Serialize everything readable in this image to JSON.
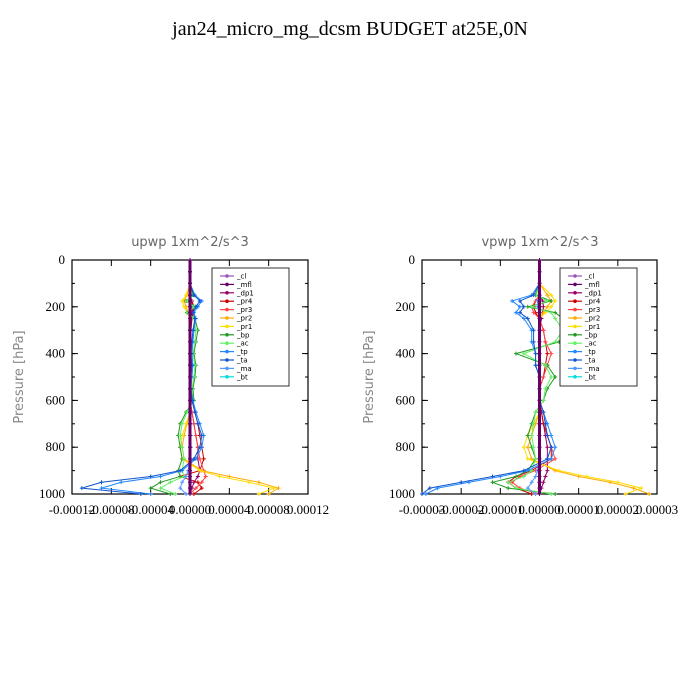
{
  "figure": {
    "title": "jan24_micro_mg_dcsm  BUDGET at25E,0N"
  },
  "chart_data": [
    {
      "type": "line",
      "title": "upwp   1xm^2/s^3",
      "ylabel": "Pressure [hPa]",
      "xlabel": "",
      "xlim": [
        -0.00012,
        0.00012
      ],
      "ylim": [
        1000,
        0
      ],
      "x_tick_labels": [
        "-0.00012",
        "-0.00008",
        "-0.00004",
        "0.00000",
        "0.00004",
        "0.00008",
        "0.00012"
      ],
      "y_tick_labels": [
        "0",
        "200",
        "400",
        "600",
        "800",
        "1000"
      ],
      "legend_position": "top-right",
      "levels": [
        0,
        50,
        100,
        150,
        175,
        200,
        225,
        250,
        300,
        350,
        400,
        450,
        500,
        550,
        600,
        650,
        700,
        750,
        800,
        850,
        900,
        925,
        950,
        975,
        1000
      ],
      "series": [
        {
          "name": "_cl",
          "color": "#9955bb",
          "values": [
            0,
            0,
            0,
            0,
            0,
            0,
            0,
            0,
            0,
            0,
            0,
            0,
            0,
            0,
            0,
            0,
            0,
            0,
            0,
            0,
            0,
            0,
            0,
            0,
            0
          ]
        },
        {
          "name": "_mfl",
          "color": "#660066",
          "values": [
            0,
            0,
            0,
            0,
            0,
            0,
            0,
            0,
            0,
            0,
            0,
            0,
            0,
            0,
            0,
            0,
            0,
            0,
            0,
            0,
            0,
            0,
            0,
            0,
            0
          ]
        },
        {
          "name": "_dp1",
          "color": "#990066",
          "values": [
            0,
            0,
            0,
            0,
            2e-06,
            3e-06,
            2e-06,
            1e-06,
            0,
            0,
            0,
            0,
            0,
            0,
            0,
            2e-06,
            4e-06,
            6e-06,
            8e-06,
            8e-06,
            1e-05,
            8e-06,
            4e-06,
            2e-06,
            0
          ]
        },
        {
          "name": "_pr4",
          "color": "#cc0000",
          "values": [
            0,
            0,
            0,
            0,
            2e-06,
            4e-06,
            3e-06,
            2e-06,
            1e-06,
            1e-06,
            1e-06,
            1e-06,
            1e-06,
            0,
            2e-06,
            5e-06,
            8e-06,
            1e-05,
            1.2e-05,
            1.4e-05,
            1e-05,
            -1e-05,
            8e-06,
            1.2e-05,
            4e-06
          ]
        },
        {
          "name": "_pr3",
          "color": "#ff4444",
          "values": [
            0,
            0,
            0,
            0,
            1e-06,
            2e-06,
            1e-06,
            1e-06,
            0,
            0,
            0,
            0,
            0,
            0,
            0,
            2e-06,
            4e-06,
            6e-06,
            8e-06,
            1e-05,
            1.4e-05,
            1.6e-05,
            1.2e-05,
            6e-06,
            0
          ]
        },
        {
          "name": "_pr2",
          "color": "#ffaa00",
          "values": [
            0,
            0,
            0,
            -3e-06,
            -6e-06,
            -4e-06,
            -2e-06,
            0,
            0,
            0,
            0,
            0,
            0,
            0,
            0,
            0,
            -3e-06,
            -6e-06,
            -8e-06,
            -6e-06,
            1.2e-05,
            4e-05,
            7e-05,
            9e-05,
            8e-05
          ]
        },
        {
          "name": "_pr1",
          "color": "#ffdd00",
          "values": [
            0,
            0,
            0,
            -4e-06,
            -8e-06,
            -6e-06,
            -3e-06,
            0,
            0,
            0,
            0,
            0,
            0,
            0,
            0,
            0,
            -4e-06,
            -8e-06,
            -1e-05,
            -8e-06,
            1e-05,
            3e-05,
            6e-05,
            8.5e-05,
            7e-05
          ]
        },
        {
          "name": "_bp",
          "color": "#229922",
          "values": [
            0,
            0,
            0,
            3e-06,
            -4e-06,
            6e-06,
            -3e-06,
            5e-06,
            8e-06,
            6e-06,
            4e-06,
            6e-06,
            5e-06,
            3e-06,
            4e-06,
            -4e-06,
            -1e-05,
            -1.2e-05,
            -1e-05,
            -8e-06,
            -1.2e-05,
            -1e-05,
            -3e-05,
            -4e-05,
            -2e-05
          ]
        },
        {
          "name": "_ac",
          "color": "#66ee66",
          "values": [
            0,
            0,
            0,
            2e-06,
            -3e-06,
            4e-06,
            -2e-06,
            4e-06,
            6e-06,
            5e-06,
            3e-06,
            5e-06,
            4e-06,
            2e-06,
            3e-06,
            -3e-06,
            -8e-06,
            -1e-05,
            -8e-06,
            -6e-06,
            -8e-06,
            -6e-06,
            -2e-05,
            -3e-05,
            -1.5e-05
          ]
        },
        {
          "name": "_tp",
          "color": "#2288ff",
          "values": [
            0,
            0,
            0,
            5e-06,
            1.2e-05,
            8e-06,
            4e-06,
            6e-06,
            4e-06,
            3e-06,
            2e-06,
            3e-06,
            2e-06,
            1e-06,
            3e-06,
            6e-06,
            1e-05,
            1.4e-05,
            1.2e-05,
            6e-06,
            -8e-06,
            -3e-05,
            -7e-05,
            -9e-05,
            -4e-05
          ]
        },
        {
          "name": "_ta",
          "color": "#1155cc",
          "values": [
            0,
            0,
            0,
            4e-06,
            1e-05,
            6e-06,
            3e-06,
            5e-06,
            3e-06,
            2e-06,
            1e-06,
            2e-06,
            1e-06,
            1e-06,
            2e-06,
            5e-06,
            8e-06,
            1.2e-05,
            1e-05,
            4e-06,
            -1e-05,
            -4e-05,
            -9e-05,
            -0.00011,
            -5e-05
          ]
        },
        {
          "name": "_ma",
          "color": "#5599ff",
          "values": [
            0,
            0,
            0,
            0,
            1e-06,
            1e-06,
            0,
            0,
            0,
            0,
            0,
            0,
            0,
            0,
            0,
            0,
            1e-06,
            1e-06,
            1e-06,
            0,
            -2e-06,
            -4e-06,
            -8e-06,
            -1e-05,
            -4e-06
          ]
        },
        {
          "name": "_bt",
          "color": "#00dddd",
          "values": [
            0,
            0,
            0,
            0,
            0,
            0,
            0,
            0,
            0,
            0,
            0,
            0,
            0,
            0,
            0,
            0,
            0,
            0,
            0,
            0,
            0,
            0,
            0,
            0,
            0
          ]
        }
      ]
    },
    {
      "type": "line",
      "title": "vpwp   1xm^2/s^3",
      "ylabel": "Pressure [hPa]",
      "xlabel": "",
      "xlim": [
        -3e-05,
        3e-05
      ],
      "ylim": [
        1000,
        0
      ],
      "x_tick_labels": [
        "-0.00003",
        "-0.00002",
        "-0.00001",
        "0.00000",
        "0.00001",
        "0.00002",
        "0.00003"
      ],
      "y_tick_labels": [
        "0",
        "200",
        "400",
        "600",
        "800",
        "1000"
      ],
      "legend_position": "top-right",
      "levels": [
        0,
        50,
        100,
        150,
        175,
        200,
        225,
        250,
        300,
        350,
        400,
        450,
        500,
        550,
        600,
        650,
        700,
        750,
        800,
        850,
        900,
        925,
        950,
        975,
        1000
      ],
      "series": [
        {
          "name": "_cl",
          "color": "#9955bb",
          "values": [
            0,
            0,
            0,
            0,
            0,
            0,
            0,
            0,
            0,
            0,
            0,
            0,
            0,
            0,
            0,
            0,
            0,
            0,
            0,
            0,
            0,
            0,
            0,
            0,
            0
          ]
        },
        {
          "name": "_mfl",
          "color": "#660066",
          "values": [
            0,
            0,
            0,
            0,
            0,
            0,
            0,
            0,
            0,
            0,
            0,
            0,
            0,
            0,
            0,
            0,
            0,
            0,
            0,
            0,
            0,
            0,
            0,
            0,
            0
          ]
        },
        {
          "name": "_dp1",
          "color": "#990066",
          "values": [
            0,
            0,
            0,
            0,
            8e-07,
            1e-06,
            8e-07,
            5e-07,
            0,
            0,
            0,
            0,
            0,
            0,
            0,
            5e-07,
            1e-06,
            1.5e-06,
            2e-06,
            2e-06,
            2e-06,
            1.5e-06,
            1e-06,
            5e-07,
            0
          ]
        },
        {
          "name": "_pr4",
          "color": "#cc0000",
          "values": [
            0,
            0,
            0,
            0,
            -1e-06,
            -1.5e-06,
            -1e-06,
            0,
            1e-06,
            1.5e-06,
            2e-06,
            1.5e-06,
            1e-06,
            0,
            0,
            5e-07,
            1e-06,
            2e-06,
            3e-06,
            3e-06,
            -2e-06,
            -6e-06,
            -8e-06,
            -6e-06,
            -2e-06
          ]
        },
        {
          "name": "_pr3",
          "color": "#ff4444",
          "values": [
            0,
            0,
            0,
            0,
            -1e-06,
            -2e-06,
            -1.5e-06,
            0,
            1e-06,
            1.5e-06,
            3e-06,
            2e-06,
            1e-06,
            0,
            0,
            1e-06,
            1.5e-06,
            2e-06,
            3e-06,
            4e-06,
            -1e-06,
            -5e-06,
            -7e-06,
            -5e-06,
            0
          ]
        },
        {
          "name": "_pr2",
          "color": "#ffaa00",
          "values": [
            0,
            0,
            0,
            2e-06,
            3e-06,
            2e-06,
            1e-06,
            0,
            0,
            0,
            0,
            0,
            0,
            0,
            0,
            0,
            -1e-06,
            -2e-06,
            -3e-06,
            -2e-06,
            4e-06,
            1e-05,
            1.8e-05,
            2.4e-05,
            2.8e-05
          ]
        },
        {
          "name": "_pr1",
          "color": "#ffdd00",
          "values": [
            0,
            0,
            0,
            3e-06,
            4e-06,
            3e-06,
            1.5e-06,
            0,
            0,
            0,
            0,
            0,
            0,
            0,
            0,
            0,
            -1.5e-06,
            -3e-06,
            -4e-06,
            -3e-06,
            5e-06,
            1.2e-05,
            2e-05,
            2.6e-05,
            2.2e-05
          ]
        },
        {
          "name": "_bp",
          "color": "#229922",
          "values": [
            0,
            0,
            0,
            -1e-06,
            3e-06,
            -3e-06,
            4e-06,
            6e-06,
            8e-06,
            5e-06,
            -6e-06,
            2e-06,
            4e-06,
            2e-06,
            1e-06,
            -1e-06,
            -2e-06,
            -3e-06,
            -2e-06,
            -1e-06,
            -3e-06,
            -6e-06,
            -1.2e-05,
            -8e-06,
            4e-06
          ]
        },
        {
          "name": "_ac",
          "color": "#66ee66",
          "values": [
            0,
            0,
            0,
            -8e-07,
            2e-06,
            -2e-06,
            3e-06,
            4e-06,
            6e-06,
            4e-06,
            -4e-06,
            1.5e-06,
            3e-06,
            1.5e-06,
            1e-06,
            -1e-06,
            -1.5e-06,
            -2e-06,
            -1.5e-06,
            -1e-06,
            -2e-06,
            -4e-06,
            -8e-06,
            -6e-06,
            3e-06
          ]
        },
        {
          "name": "_tp",
          "color": "#2288ff",
          "values": [
            0,
            0,
            0,
            -2e-06,
            -7e-06,
            -5e-06,
            -6e-06,
            -4e-06,
            -2e-06,
            -2e-06,
            -1e-06,
            -1e-06,
            0,
            0,
            0,
            1e-06,
            2e-06,
            3e-06,
            4e-06,
            3e-06,
            -3e-06,
            -1e-05,
            -1.8e-05,
            -2.6e-05,
            -2.9e-05
          ]
        },
        {
          "name": "_ta",
          "color": "#1155cc",
          "values": [
            0,
            0,
            0,
            -1.5e-06,
            -5e-06,
            -4e-06,
            -5e-06,
            -3e-06,
            -1.5e-06,
            -1.5e-06,
            -1e-06,
            -1e-06,
            0,
            0,
            0,
            1e-06,
            1.5e-06,
            2e-06,
            3e-06,
            2e-06,
            -4e-06,
            -1.2e-05,
            -2e-05,
            -2.8e-05,
            -3e-05
          ]
        },
        {
          "name": "_ma",
          "color": "#5599ff",
          "values": [
            0,
            0,
            0,
            0,
            -5e-07,
            -5e-07,
            0,
            0,
            0,
            0,
            0,
            0,
            0,
            0,
            0,
            0,
            0,
            0,
            0,
            0,
            -5e-07,
            -1e-06,
            -2e-06,
            -3e-06,
            -1e-06
          ]
        },
        {
          "name": "_bt",
          "color": "#00dddd",
          "values": [
            0,
            0,
            0,
            0,
            0,
            0,
            0,
            0,
            0,
            0,
            0,
            0,
            0,
            0,
            0,
            0,
            0,
            0,
            0,
            0,
            0,
            0,
            0,
            0,
            0
          ]
        }
      ]
    }
  ]
}
